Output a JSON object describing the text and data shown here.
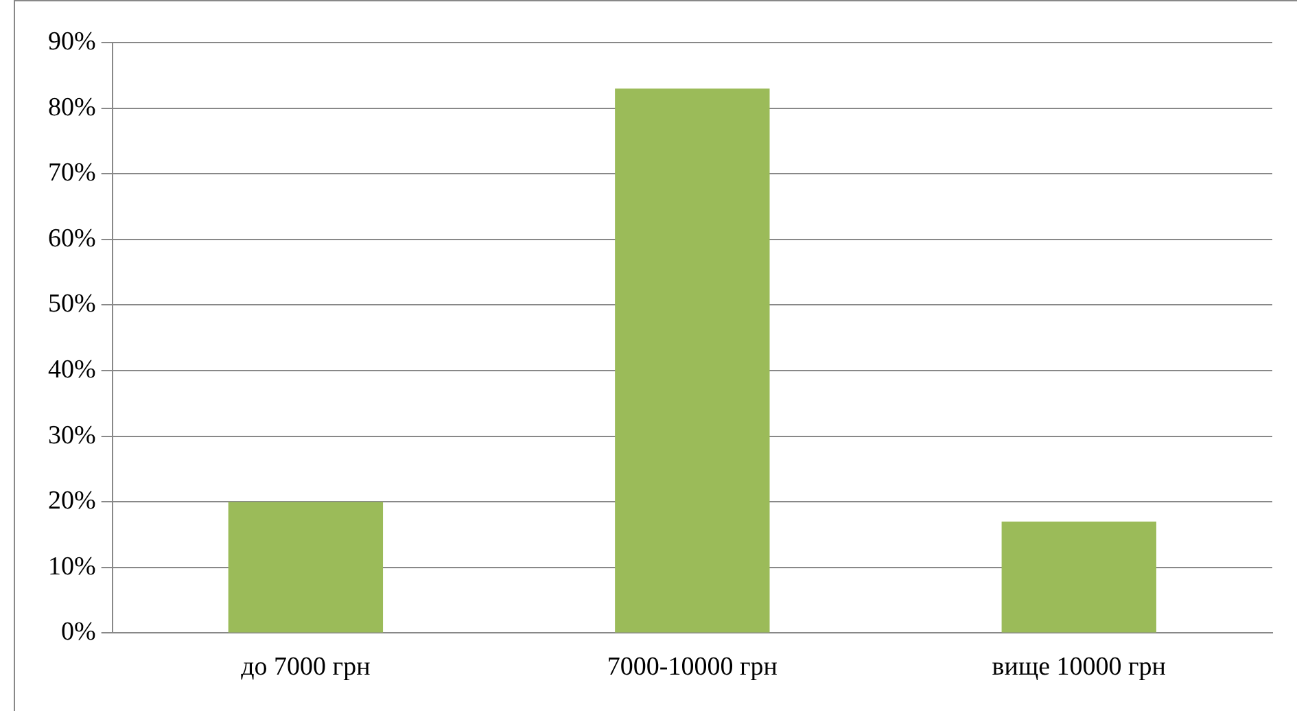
{
  "chart_data": {
    "type": "bar",
    "categories": [
      "до 7000 грн",
      "7000-10000 грн",
      "вище 10000 грн"
    ],
    "values": [
      20,
      83,
      17
    ],
    "color": "#9bbb59",
    "ylim": [
      0,
      90
    ],
    "yticks": [
      {
        "value": 0,
        "label": "0%"
      },
      {
        "value": 10,
        "label": "10%"
      },
      {
        "value": 20,
        "label": "20%"
      },
      {
        "value": 30,
        "label": "30%"
      },
      {
        "value": 40,
        "label": "40%"
      },
      {
        "value": 50,
        "label": "50%"
      },
      {
        "value": 60,
        "label": "60%"
      },
      {
        "value": 70,
        "label": "70%"
      },
      {
        "value": 80,
        "label": "80%"
      },
      {
        "value": 90,
        "label": "90%"
      }
    ],
    "grid": "y",
    "legend": false
  }
}
